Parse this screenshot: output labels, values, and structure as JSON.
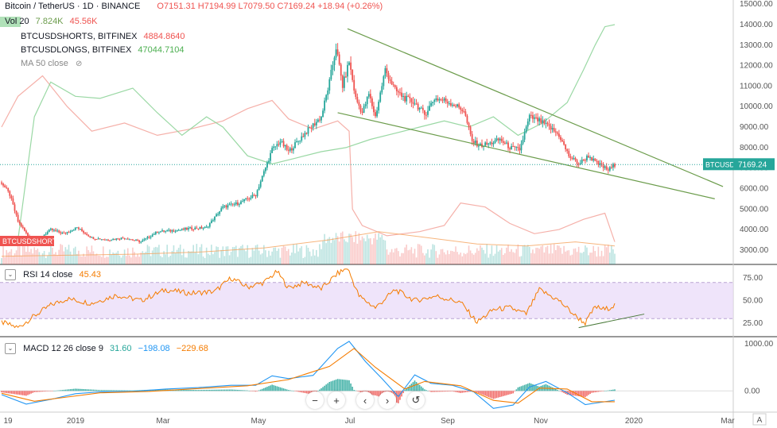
{
  "header": {
    "symbol": "Bitcoin / TetherUS · 1D · BINANCE",
    "ohlc": "O7151.31 H7194.99 L7079.50 C7169.24 +18.94 (+0.26%)"
  },
  "legend": {
    "vol_label": "Vol 20",
    "vol_values": [
      "7.824K",
      "45.56K"
    ],
    "shorts_label": "BTCUSDSHORTS, BITFINEX",
    "shorts_value": "4884.8640",
    "longs_label": "BTCUSDLONGS, BITFINEX",
    "longs_value": "47044.7104",
    "ma_label": "MA 50 close"
  },
  "rsi_legend": {
    "label": "RSI 14 close",
    "value": "45.43"
  },
  "macd_legend": {
    "label": "MACD 12 26 close 9",
    "v1": "31.60",
    "v2": "−198.08",
    "v3": "−229.68"
  },
  "price_tag": {
    "symbol": "BTCUSDT",
    "value": "7169.24"
  },
  "shorts_tag": "BTCUSDSHORTS",
  "colors": {
    "up": "#26a69a",
    "down": "#ef5350",
    "shorts": "#f4a7a0",
    "longs": "#8fd49a",
    "rsi": "#f57c00",
    "trend": "#6b9c4b",
    "macd": "#2196f3",
    "signal": "#f57c00"
  },
  "controls": [
    "minus-icon",
    "plus-icon",
    "chevron-left-icon",
    "chevron-right-icon",
    "reset-icon"
  ],
  "chart_data": [
    {
      "type": "candlestick",
      "title": "Bitcoin / TetherUS",
      "x_ticks": [
        "19",
        "2019",
        "Mar",
        "May",
        "Jul",
        "Sep",
        "Nov",
        "2020",
        "Mar"
      ],
      "y_ticks": [
        "15000.00",
        "14000.00",
        "13000.00",
        "12000.00",
        "11000.00",
        "10000.00",
        "9000.00",
        "8000.00",
        "7000.00",
        "6000.00",
        "5000.00",
        "4000.00",
        "3000.00"
      ],
      "ylim": [
        2300,
        15200
      ],
      "close_series": [
        {
          "i": 0,
          "v": 6300
        },
        {
          "i": 5,
          "v": 5700
        },
        {
          "i": 10,
          "v": 4400
        },
        {
          "i": 16,
          "v": 3700
        },
        {
          "i": 22,
          "v": 3500
        },
        {
          "i": 30,
          "v": 4000
        },
        {
          "i": 38,
          "v": 3800
        },
        {
          "i": 46,
          "v": 4100
        },
        {
          "i": 55,
          "v": 3600
        },
        {
          "i": 65,
          "v": 3500
        },
        {
          "i": 75,
          "v": 3600
        },
        {
          "i": 85,
          "v": 3400
        },
        {
          "i": 95,
          "v": 3900
        },
        {
          "i": 105,
          "v": 3950
        },
        {
          "i": 115,
          "v": 4050
        },
        {
          "i": 125,
          "v": 4100
        },
        {
          "i": 135,
          "v": 5100
        },
        {
          "i": 145,
          "v": 5300
        },
        {
          "i": 155,
          "v": 5700
        },
        {
          "i": 165,
          "v": 7900
        },
        {
          "i": 170,
          "v": 8300
        },
        {
          "i": 175,
          "v": 7800
        },
        {
          "i": 185,
          "v": 8700
        },
        {
          "i": 195,
          "v": 9500
        },
        {
          "i": 200,
          "v": 11200
        },
        {
          "i": 204,
          "v": 12900
        },
        {
          "i": 208,
          "v": 11000
        },
        {
          "i": 212,
          "v": 12200
        },
        {
          "i": 216,
          "v": 10400
        },
        {
          "i": 220,
          "v": 9700
        },
        {
          "i": 224,
          "v": 10600
        },
        {
          "i": 228,
          "v": 9500
        },
        {
          "i": 234,
          "v": 11800
        },
        {
          "i": 240,
          "v": 10800
        },
        {
          "i": 246,
          "v": 10400
        },
        {
          "i": 252,
          "v": 10200
        },
        {
          "i": 258,
          "v": 9600
        },
        {
          "i": 264,
          "v": 10400
        },
        {
          "i": 270,
          "v": 10300
        },
        {
          "i": 276,
          "v": 10100
        },
        {
          "i": 282,
          "v": 9800
        },
        {
          "i": 287,
          "v": 8300
        },
        {
          "i": 292,
          "v": 8100
        },
        {
          "i": 298,
          "v": 8200
        },
        {
          "i": 304,
          "v": 8400
        },
        {
          "i": 310,
          "v": 8000
        },
        {
          "i": 316,
          "v": 7900
        },
        {
          "i": 322,
          "v": 9500
        },
        {
          "i": 328,
          "v": 9300
        },
        {
          "i": 334,
          "v": 9000
        },
        {
          "i": 340,
          "v": 8600
        },
        {
          "i": 346,
          "v": 7600
        },
        {
          "i": 352,
          "v": 7200
        },
        {
          "i": 358,
          "v": 7600
        },
        {
          "i": 362,
          "v": 7300
        },
        {
          "i": 366,
          "v": 7100
        },
        {
          "i": 370,
          "v": 6900
        },
        {
          "i": 374,
          "v": 7169
        }
      ],
      "trendlines": [
        {
          "from": {
            "i": 211,
            "v": 13800
          },
          "to": {
            "i": 440,
            "v": 6100
          }
        },
        {
          "from": {
            "i": 205,
            "v": 9700
          },
          "to": {
            "i": 435,
            "v": 5500
          }
        }
      ],
      "overlays": {
        "shorts": [
          {
            "i": 0,
            "v": 9000
          },
          {
            "i": 10,
            "v": 10500
          },
          {
            "i": 25,
            "v": 11500
          },
          {
            "i": 40,
            "v": 10000
          },
          {
            "i": 55,
            "v": 8800
          },
          {
            "i": 75,
            "v": 9200
          },
          {
            "i": 95,
            "v": 8600
          },
          {
            "i": 115,
            "v": 8900
          },
          {
            "i": 135,
            "v": 9300
          },
          {
            "i": 150,
            "v": 9900
          },
          {
            "i": 165,
            "v": 10300
          },
          {
            "i": 175,
            "v": 9400
          },
          {
            "i": 190,
            "v": 8900
          },
          {
            "i": 205,
            "v": 9300
          },
          {
            "i": 212,
            "v": 8800
          },
          {
            "i": 214,
            "v": 5000
          },
          {
            "i": 220,
            "v": 4200
          },
          {
            "i": 235,
            "v": 3700
          },
          {
            "i": 255,
            "v": 3900
          },
          {
            "i": 270,
            "v": 4200
          },
          {
            "i": 280,
            "v": 5300
          },
          {
            "i": 295,
            "v": 5100
          },
          {
            "i": 310,
            "v": 4300
          },
          {
            "i": 325,
            "v": 3800
          },
          {
            "i": 340,
            "v": 4000
          },
          {
            "i": 355,
            "v": 4500
          },
          {
            "i": 368,
            "v": 4800
          },
          {
            "i": 374,
            "v": 3400
          }
        ],
        "longs": [
          {
            "i": 0,
            "v": 3200
          },
          {
            "i": 10,
            "v": 3500
          },
          {
            "i": 20,
            "v": 9500
          },
          {
            "i": 30,
            "v": 11200
          },
          {
            "i": 45,
            "v": 10500
          },
          {
            "i": 60,
            "v": 10400
          },
          {
            "i": 80,
            "v": 10900
          },
          {
            "i": 95,
            "v": 9700
          },
          {
            "i": 110,
            "v": 8600
          },
          {
            "i": 125,
            "v": 9500
          },
          {
            "i": 135,
            "v": 9000
          },
          {
            "i": 150,
            "v": 7600
          },
          {
            "i": 165,
            "v": 7200
          },
          {
            "i": 180,
            "v": 7500
          },
          {
            "i": 195,
            "v": 7800
          },
          {
            "i": 210,
            "v": 8000
          },
          {
            "i": 225,
            "v": 8400
          },
          {
            "i": 240,
            "v": 8700
          },
          {
            "i": 255,
            "v": 9000
          },
          {
            "i": 270,
            "v": 9300
          },
          {
            "i": 285,
            "v": 9000
          },
          {
            "i": 300,
            "v": 9500
          },
          {
            "i": 315,
            "v": 8600
          },
          {
            "i": 330,
            "v": 9200
          },
          {
            "i": 345,
            "v": 10200
          },
          {
            "i": 355,
            "v": 11800
          },
          {
            "i": 362,
            "v": 13000
          },
          {
            "i": 368,
            "v": 13900
          },
          {
            "i": 374,
            "v": 14000
          }
        ],
        "ma50": [
          {
            "i": 0,
            "v": 2700
          },
          {
            "i": 40,
            "v": 2750
          },
          {
            "i": 80,
            "v": 2800
          },
          {
            "i": 120,
            "v": 2900
          },
          {
            "i": 160,
            "v": 3100
          },
          {
            "i": 200,
            "v": 3500
          },
          {
            "i": 230,
            "v": 3900
          },
          {
            "i": 260,
            "v": 3600
          },
          {
            "i": 290,
            "v": 3300
          },
          {
            "i": 320,
            "v": 3200
          },
          {
            "i": 350,
            "v": 3400
          },
          {
            "i": 374,
            "v": 3200
          }
        ]
      }
    },
    {
      "type": "line",
      "title": "RSI 14 close",
      "y_ticks": [
        "75.00",
        "50.00",
        "25.00"
      ],
      "ylim": [
        10,
        90
      ],
      "band": [
        30,
        70
      ],
      "series": [
        {
          "i": 0,
          "v": 26
        },
        {
          "i": 10,
          "v": 20
        },
        {
          "i": 20,
          "v": 33
        },
        {
          "i": 30,
          "v": 45
        },
        {
          "i": 40,
          "v": 52
        },
        {
          "i": 55,
          "v": 47
        },
        {
          "i": 70,
          "v": 56
        },
        {
          "i": 85,
          "v": 50
        },
        {
          "i": 100,
          "v": 62
        },
        {
          "i": 115,
          "v": 58
        },
        {
          "i": 130,
          "v": 60
        },
        {
          "i": 140,
          "v": 75
        },
        {
          "i": 150,
          "v": 65
        },
        {
          "i": 160,
          "v": 70
        },
        {
          "i": 168,
          "v": 82
        },
        {
          "i": 175,
          "v": 64
        },
        {
          "i": 185,
          "v": 70
        },
        {
          "i": 195,
          "v": 63
        },
        {
          "i": 205,
          "v": 80
        },
        {
          "i": 211,
          "v": 86
        },
        {
          "i": 218,
          "v": 55
        },
        {
          "i": 228,
          "v": 42
        },
        {
          "i": 240,
          "v": 62
        },
        {
          "i": 252,
          "v": 50
        },
        {
          "i": 265,
          "v": 55
        },
        {
          "i": 280,
          "v": 48
        },
        {
          "i": 290,
          "v": 26
        },
        {
          "i": 300,
          "v": 40
        },
        {
          "i": 310,
          "v": 42
        },
        {
          "i": 320,
          "v": 35
        },
        {
          "i": 328,
          "v": 62
        },
        {
          "i": 340,
          "v": 50
        },
        {
          "i": 350,
          "v": 33
        },
        {
          "i": 356,
          "v": 25
        },
        {
          "i": 362,
          "v": 43
        },
        {
          "i": 368,
          "v": 40
        },
        {
          "i": 374,
          "v": 45
        }
      ],
      "trendline": {
        "from": {
          "i": 352,
          "v": 20
        },
        "to": {
          "i": 392,
          "v": 35
        }
      }
    },
    {
      "type": "bar",
      "title": "MACD 12 26 close 9",
      "y_ticks": [
        "1000.00",
        "0.00"
      ],
      "ylim": [
        -450,
        1150
      ],
      "macd_line": [
        {
          "i": 0,
          "v": -80
        },
        {
          "i": 15,
          "v": -280
        },
        {
          "i": 30,
          "v": -180
        },
        {
          "i": 45,
          "v": -60
        },
        {
          "i": 60,
          "v": -20
        },
        {
          "i": 80,
          "v": -10
        },
        {
          "i": 100,
          "v": 40
        },
        {
          "i": 120,
          "v": 70
        },
        {
          "i": 140,
          "v": 120
        },
        {
          "i": 155,
          "v": 120
        },
        {
          "i": 165,
          "v": 320
        },
        {
          "i": 175,
          "v": 260
        },
        {
          "i": 190,
          "v": 330
        },
        {
          "i": 205,
          "v": 900
        },
        {
          "i": 212,
          "v": 1050
        },
        {
          "i": 222,
          "v": 620
        },
        {
          "i": 232,
          "v": 260
        },
        {
          "i": 242,
          "v": -120
        },
        {
          "i": 252,
          "v": 340
        },
        {
          "i": 262,
          "v": 160
        },
        {
          "i": 275,
          "v": 120
        },
        {
          "i": 288,
          "v": -20
        },
        {
          "i": 300,
          "v": -370
        },
        {
          "i": 312,
          "v": -300
        },
        {
          "i": 322,
          "v": 80
        },
        {
          "i": 332,
          "v": 200
        },
        {
          "i": 345,
          "v": -40
        },
        {
          "i": 356,
          "v": -290
        },
        {
          "i": 366,
          "v": -240
        },
        {
          "i": 374,
          "v": -198
        }
      ],
      "signal_line": [
        {
          "i": 0,
          "v": -50
        },
        {
          "i": 20,
          "v": -220
        },
        {
          "i": 40,
          "v": -130
        },
        {
          "i": 60,
          "v": -40
        },
        {
          "i": 90,
          "v": -10
        },
        {
          "i": 120,
          "v": 50
        },
        {
          "i": 150,
          "v": 110
        },
        {
          "i": 175,
          "v": 240
        },
        {
          "i": 200,
          "v": 520
        },
        {
          "i": 215,
          "v": 900
        },
        {
          "i": 228,
          "v": 500
        },
        {
          "i": 246,
          "v": 40
        },
        {
          "i": 258,
          "v": 200
        },
        {
          "i": 280,
          "v": 110
        },
        {
          "i": 300,
          "v": -200
        },
        {
          "i": 315,
          "v": -260
        },
        {
          "i": 328,
          "v": 60
        },
        {
          "i": 345,
          "v": 40
        },
        {
          "i": 360,
          "v": -230
        },
        {
          "i": 374,
          "v": -230
        }
      ]
    }
  ]
}
